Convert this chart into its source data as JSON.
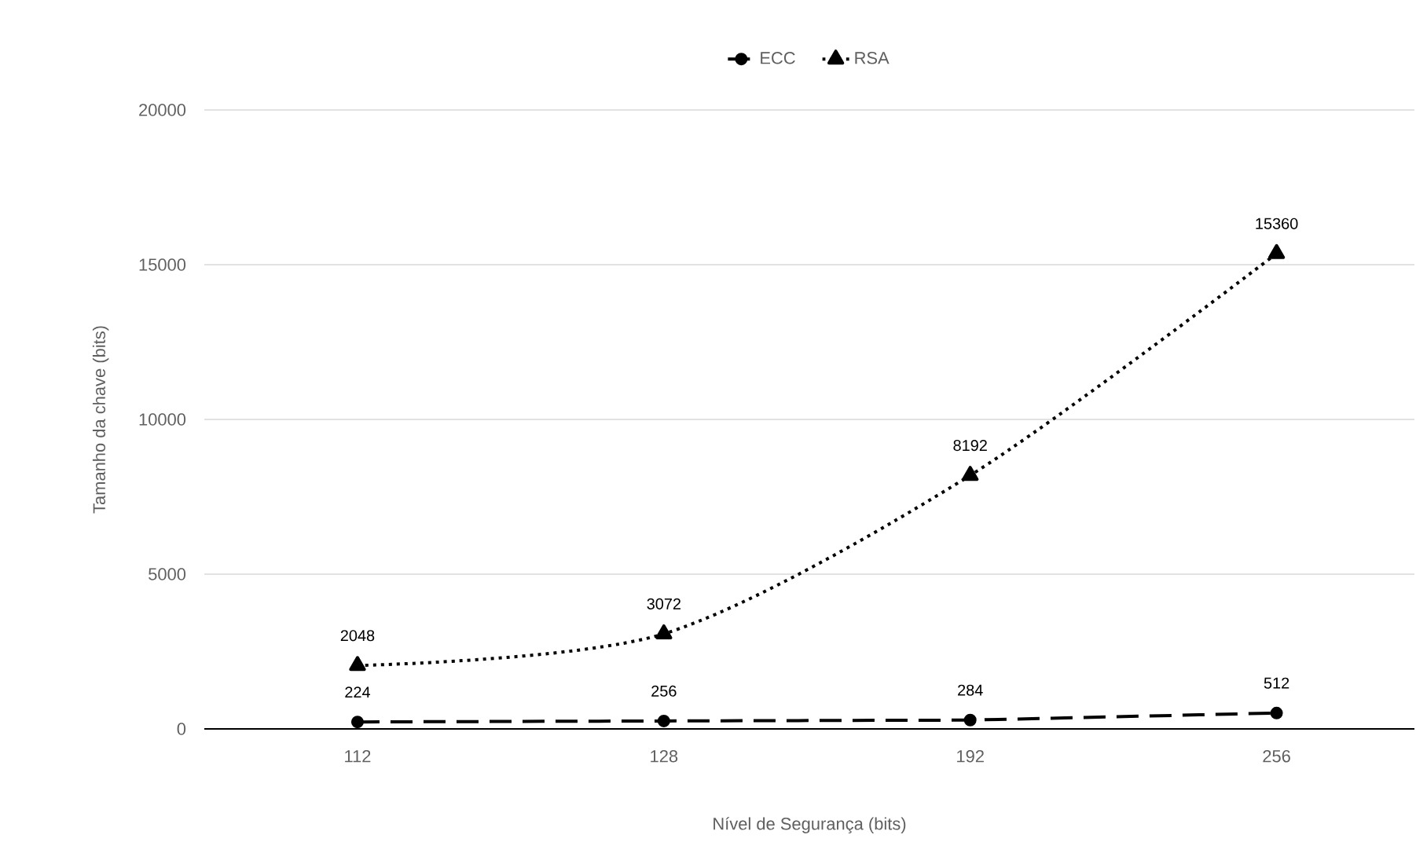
{
  "chart_data": {
    "type": "line",
    "xlabel": "Nível de Segurança (bits)",
    "ylabel": "Tamanho da chave (bits)",
    "categories": [
      "112",
      "128",
      "192",
      "256"
    ],
    "series": [
      {
        "name": "ECC",
        "color": "#000000",
        "values": [
          224,
          256,
          284,
          512
        ],
        "marker": "circle",
        "line_style": "dashed"
      },
      {
        "name": "RSA",
        "color": "#000000",
        "values": [
          2048,
          3072,
          8192,
          15360
        ],
        "marker": "triangle",
        "line_style": "dotted"
      }
    ],
    "ylim": [
      0,
      20000
    ],
    "yticks": [
      0,
      5000,
      10000,
      15000,
      20000
    ],
    "grid": "y",
    "legend": "top",
    "data_labels": true
  }
}
